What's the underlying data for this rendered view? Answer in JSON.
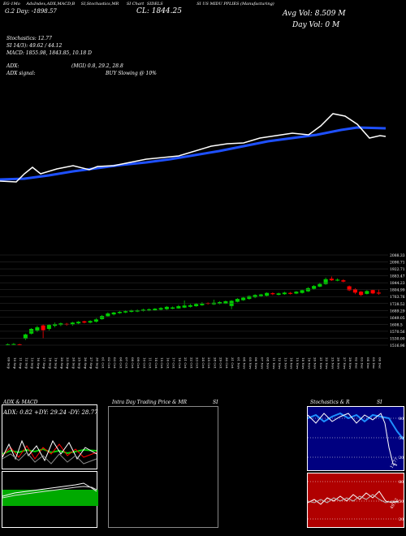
{
  "header": {
    "tab_labels": [
      "EG-1Mo",
      "AdxIndex,ADX,MACD,B",
      "SI,Stochastics,MR",
      "SI Chart",
      "SIDELS",
      "SI US MIDU PPLIES (Manufacturing)"
    ],
    "top_values": "G.2 Day: -1898.57",
    "cl": "CL: 1844.25",
    "avg_vol": "Avg Vol: 8.509 M",
    "day_vol": "Day Vol: 0   M"
  },
  "indicators": {
    "stochastics": "Stochastics: 12.77",
    "si": "SI 14/3): 49.62 / 44.12",
    "macd": "MACD: 1855.98,  1843.85,  10.18 D",
    "adx": "ADX:",
    "adx_values": "(MGI) 0.8, 29.2, 28.8",
    "adx_signal": "ADX  signal:",
    "signal_text": "BUY Slowing @ 10%"
  },
  "price_axis": [
    "2088.33",
    "2090.71",
    "1922.71",
    "1883.47",
    "1844.23",
    "1804.99",
    "1763.76",
    "1728.52",
    "1689.29",
    "1649.05",
    "1608.5",
    "1570.56",
    "1530.00",
    "1516.96"
  ],
  "date_labels": [
    "09 Sep",
    "10 Sep",
    "11 Sep",
    "12 Sep",
    "13 Sep",
    "16 Sep",
    "17 Sep",
    "18 Sep",
    "19 Sep",
    "20 Sep",
    "23 Sep",
    "24 Sep",
    "25 Sep",
    "26 Sep",
    "27 Sep",
    "30 Sep",
    "01 Oct",
    "02 Oct",
    "03 Oct",
    "04 Oct",
    "07 Oct",
    "08 Oct",
    "09 Oct",
    "10 Oct",
    "11 Oct",
    "14 Oct",
    "15 Oct",
    "16 Oct",
    "17 Oct",
    "18 Oct",
    "21 Oct",
    "22 Oct",
    "23 Oct",
    "24 Oct",
    "25 Oct",
    "28 Oct",
    "29 Oct",
    "30 Oct",
    "31 Oct",
    "01 Nov",
    "04 Nov",
    "05 Nov",
    "06 Nov",
    "07 Nov",
    "08 Nov",
    "11 Nov",
    "12 Nov",
    "13 Nov",
    "14 Nov",
    "15 Nov",
    "18 Nov",
    "19 Nov",
    "20 Nov",
    "21 Nov",
    "22 Nov",
    "25 Nov",
    "26 Nov",
    "27 Nov",
    "29 Nov",
    "02 Dec",
    "03 Dec",
    "04 Dec",
    "05 Dec",
    "06 Dec"
  ],
  "bottom_left": {
    "title": "ADX  & MACD",
    "values": "ADX: 0.82  +DY: 29.24  -DY: 28.77"
  },
  "bottom_mid": {
    "title": "Intra  Day Trading Price  & MR",
    "si": "SI"
  },
  "bottom_right": {
    "title": "Stochastics & R",
    "si": "SI",
    "stoch_ticks": [
      "80",
      "50",
      "20"
    ],
    "stoch_value": "12.77",
    "rsi_ticks": [
      "80",
      "50",
      "20"
    ],
    "rsi_value": "49.62"
  },
  "colors": {
    "up": "#00cc00",
    "down": "#ff0000",
    "ma": "#1e50ff",
    "stoch_bg": "#000080",
    "rsi_bg": "#b00000"
  },
  "chart_data": {
    "type": "candlestick",
    "y_range": [
      1516.96,
      2088.33
    ],
    "candles": [
      [
        1522,
        1520,
        1528,
        1516,
        "up"
      ],
      [
        1524,
        1522,
        1530,
        1518,
        "up"
      ],
      [
        1520,
        1522,
        1526,
        1516,
        "down"
      ],
      [
        1585,
        1558,
        1590,
        1550,
        "up"
      ],
      [
        1620,
        1590,
        1625,
        1585,
        "up"
      ],
      [
        1630,
        1610,
        1640,
        1600,
        "up"
      ],
      [
        1612,
        1642,
        1648,
        1560,
        "down"
      ],
      [
        1645,
        1620,
        1650,
        1610,
        "up"
      ],
      [
        1650,
        1640,
        1660,
        1630,
        "up"
      ],
      [
        1655,
        1645,
        1660,
        1638,
        "up"
      ],
      [
        1648,
        1652,
        1658,
        1640,
        "down"
      ],
      [
        1660,
        1648,
        1665,
        1640,
        "up"
      ],
      [
        1665,
        1655,
        1670,
        1650,
        "up"
      ],
      [
        1660,
        1668,
        1672,
        1655,
        "down"
      ],
      [
        1670,
        1660,
        1675,
        1655,
        "up"
      ],
      [
        1680,
        1666,
        1688,
        1660,
        "up"
      ],
      [
        1702,
        1682,
        1708,
        1678,
        "up"
      ],
      [
        1718,
        1700,
        1725,
        1698,
        "up"
      ],
      [
        1724,
        1712,
        1728,
        1705,
        "up"
      ],
      [
        1728,
        1720,
        1734,
        1715,
        "up"
      ],
      [
        1732,
        1724,
        1738,
        1720,
        "up"
      ],
      [
        1736,
        1728,
        1742,
        1724,
        "up"
      ],
      [
        1738,
        1730,
        1744,
        1726,
        "up"
      ],
      [
        1742,
        1734,
        1748,
        1730,
        "up"
      ],
      [
        1744,
        1736,
        1750,
        1732,
        "up"
      ],
      [
        1748,
        1738,
        1752,
        1735,
        "up"
      ],
      [
        1752,
        1742,
        1758,
        1738,
        "up"
      ],
      [
        1760,
        1745,
        1765,
        1740,
        "up"
      ],
      [
        1756,
        1748,
        1762,
        1745,
        "up"
      ],
      [
        1764,
        1750,
        1772,
        1748,
        "up"
      ],
      [
        1768,
        1755,
        1800,
        1752,
        "up"
      ],
      [
        1770,
        1760,
        1778,
        1755,
        "up"
      ],
      [
        1778,
        1764,
        1784,
        1760,
        "up"
      ],
      [
        1782,
        1770,
        1790,
        1766,
        "up"
      ],
      [
        1780,
        1784,
        1788,
        1774,
        "down"
      ],
      [
        1786,
        1776,
        1805,
        1772,
        "up"
      ],
      [
        1790,
        1780,
        1796,
        1776,
        "up"
      ],
      [
        1795,
        1782,
        1800,
        1778,
        "up"
      ],
      [
        1765,
        1798,
        1802,
        1745,
        "up"
      ],
      [
        1810,
        1792,
        1815,
        1788,
        "up"
      ],
      [
        1818,
        1802,
        1822,
        1798,
        "up"
      ],
      [
        1828,
        1810,
        1832,
        1805,
        "up"
      ],
      [
        1835,
        1820,
        1840,
        1815,
        "up"
      ],
      [
        1838,
        1828,
        1842,
        1822,
        "up"
      ],
      [
        1848,
        1830,
        1852,
        1826,
        "up"
      ],
      [
        1840,
        1846,
        1852,
        1834,
        "down"
      ],
      [
        1845,
        1836,
        1850,
        1832,
        "up"
      ],
      [
        1850,
        1840,
        1856,
        1836,
        "up"
      ],
      [
        1848,
        1842,
        1854,
        1838,
        "down"
      ],
      [
        1856,
        1844,
        1860,
        1840,
        "up"
      ],
      [
        1865,
        1848,
        1870,
        1844,
        "up"
      ],
      [
        1878,
        1858,
        1885,
        1854,
        "up"
      ],
      [
        1892,
        1874,
        1898,
        1870,
        "up"
      ],
      [
        1905,
        1888,
        1912,
        1884,
        "up"
      ],
      [
        1935,
        1904,
        1945,
        1900,
        "up"
      ],
      [
        1938,
        1928,
        1952,
        1924,
        "down"
      ],
      [
        1932,
        1926,
        1940,
        1922,
        "up"
      ],
      [
        1928,
        1920,
        1935,
        1915,
        "down"
      ],
      [
        1865,
        1890,
        1895,
        1860,
        "down"
      ],
      [
        1850,
        1872,
        1878,
        1840,
        "down"
      ],
      [
        1835,
        1856,
        1860,
        1828,
        "down"
      ],
      [
        1860,
        1842,
        1866,
        1838,
        "up"
      ],
      [
        1845,
        1866,
        1870,
        1840,
        "down"
      ],
      [
        1850,
        1844,
        1870,
        1836,
        "down"
      ]
    ]
  }
}
